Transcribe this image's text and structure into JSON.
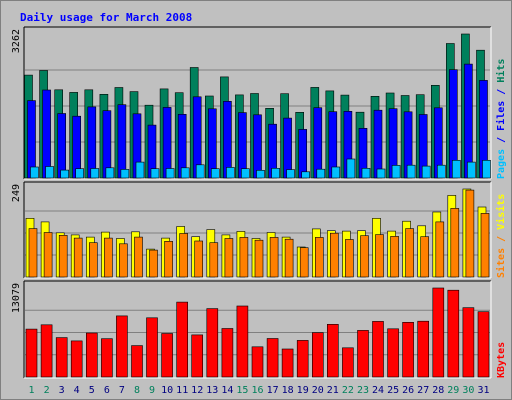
{
  "chart_data": {
    "title": "Daily usage for March 2008",
    "type": "bar",
    "categories": [
      "1",
      "2",
      "3",
      "4",
      "5",
      "6",
      "7",
      "8",
      "9",
      "10",
      "11",
      "12",
      "13",
      "14",
      "15",
      "16",
      "17",
      "18",
      "19",
      "20",
      "21",
      "22",
      "23",
      "24",
      "25",
      "26",
      "27",
      "28",
      "29",
      "30",
      "31"
    ],
    "weekend_days": [
      "1",
      "2",
      "8",
      "9",
      "15",
      "16",
      "22",
      "23",
      "29",
      "30"
    ],
    "panels": [
      {
        "id": "hits-files-pages",
        "ymax_label": "3262",
        "ymax": 3262,
        "series": [
          {
            "name": "Hits",
            "color": "#00805c",
            "values": [
              2330,
              2435,
              1999,
              1940,
              1999,
              1897,
              2050,
              1958,
              1650,
              2018,
              1933,
              2503,
              1858,
              2290,
              1882,
              1915,
              1579,
              1910,
              1488,
              2053,
              1972,
              1877,
              1491,
              1850,
              1925,
              1868,
              1886,
              2101,
              3047,
              3262,
              2896
            ]
          },
          {
            "name": "Files",
            "color": "#0000ff",
            "values": [
              1753,
              1993,
              1462,
              1400,
              1611,
              1524,
              1660,
              1455,
              1199,
              1599,
              1442,
              1839,
              1568,
              1737,
              1481,
              1432,
              1219,
              1356,
              1101,
              1592,
              1503,
              1512,
              1126,
              1536,
              1570,
              1500,
              1438,
              1591,
              2453,
              2580,
              2211
            ]
          },
          {
            "name": "Pages",
            "color": "#00c0ff",
            "values": [
              250,
              260,
              180,
              210,
              215,
              230,
              195,
              360,
              210,
              215,
              230,
              300,
              210,
              240,
              210,
              175,
              220,
              190,
              140,
              200,
              250,
              430,
              220,
              205,
              285,
              290,
              270,
              290,
              400,
              360,
              400
            ]
          }
        ],
        "legend": [
          "Pages",
          "/",
          "Files",
          "/",
          "Hits"
        ],
        "legend_colors": [
          "#00c0ff",
          "#0000ff",
          "#0000ff",
          "#0000ff",
          "#00805c"
        ]
      },
      {
        "id": "visits-sites",
        "ymax_label": "249",
        "ymax": 249,
        "series": [
          {
            "name": "Visits",
            "color": "#ffff00",
            "values": [
              166,
              156,
              125,
              119,
              113,
              127,
              109,
              128,
              79,
              110,
              143,
              114,
              134,
              119,
              129,
              109,
              126,
              113,
              85,
              136,
              131,
              130,
              131,
              166,
              130,
              158,
              145,
              184,
              231,
              249,
              198
            ]
          },
          {
            "name": "Sites",
            "color": "#ff8000",
            "values": [
              137,
              126,
              118,
              110,
              97,
              110,
              94,
              113,
              76,
              101,
              123,
              102,
              97,
              109,
              112,
              104,
              112,
              107,
              83,
              112,
              124,
              106,
              117,
              120,
              115,
              137,
              114,
              156,
              194,
              246,
              180
            ]
          }
        ],
        "legend": [
          "Sites",
          "/",
          "Visits"
        ],
        "legend_colors": [
          "#ff8000",
          "#ff8000",
          "#ffff00"
        ]
      },
      {
        "id": "kbytes",
        "ymax_label": "13079",
        "ymax": 13079,
        "series": [
          {
            "name": "KBytes",
            "color": "#ff0000",
            "values": [
              7041,
              7665,
              5786,
              5309,
              6463,
              5631,
              8986,
              4612,
              8703,
              6389,
              11004,
              6185,
              10045,
              7128,
              10427,
              4439,
              5661,
              4111,
              5375,
              6529,
              7747,
              4285,
              6841,
              8168,
              7088,
              8039,
              8203,
              13079,
              12754,
              10191,
              9597
            ]
          }
        ],
        "legend": [
          "KBytes"
        ],
        "legend_colors": [
          "#ff0000"
        ]
      }
    ],
    "grid": true
  }
}
